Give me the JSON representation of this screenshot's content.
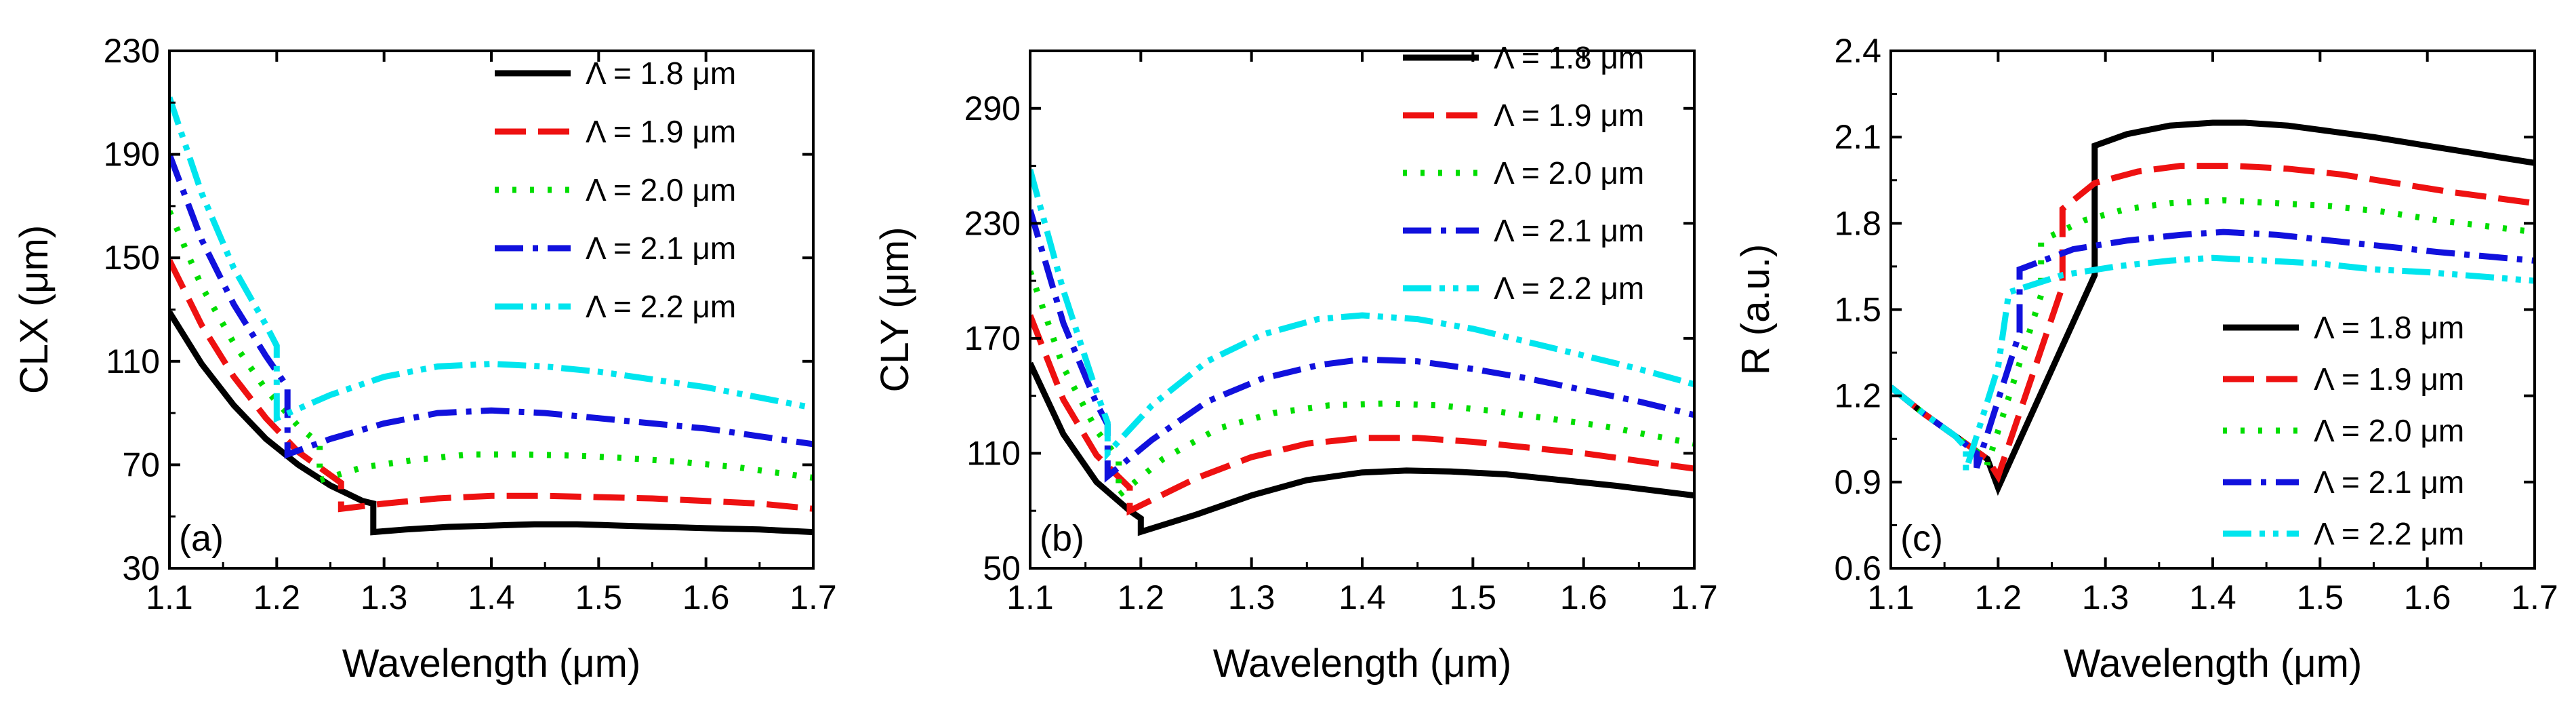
{
  "chart_data": [
    {
      "type": "line",
      "panel_label": "(a)",
      "xlabel": "Wavelength (μm)",
      "ylabel": "CLX (μm)",
      "xlim": [
        1.1,
        1.7
      ],
      "ylim": [
        30,
        230
      ],
      "xticks": [
        "1.1",
        "1.2",
        "1.3",
        "1.4",
        "1.5",
        "1.6",
        "1.7"
      ],
      "yticks": [
        "30",
        "70",
        "110",
        "150",
        "190",
        "230"
      ],
      "legend_position": "top-right",
      "series": [
        {
          "name": "Λ = 1.8 μm",
          "color": "#000000",
          "style": "solid",
          "x": [
            1.1,
            1.13,
            1.16,
            1.19,
            1.22,
            1.25,
            1.28,
            1.29,
            1.29,
            1.32,
            1.36,
            1.4,
            1.44,
            1.48,
            1.52,
            1.56,
            1.6,
            1.65,
            1.7
          ],
          "y": [
            129,
            109,
            93,
            80,
            70,
            62,
            56,
            55,
            44,
            45,
            46,
            46.5,
            47,
            47,
            46.5,
            46,
            45.5,
            45,
            44
          ]
        },
        {
          "name": "Λ = 1.9 μm",
          "color": "#ee1111",
          "style": "dash",
          "x": [
            1.1,
            1.13,
            1.16,
            1.19,
            1.22,
            1.25,
            1.26,
            1.26,
            1.3,
            1.35,
            1.4,
            1.45,
            1.5,
            1.55,
            1.6,
            1.65,
            1.7
          ],
          "y": [
            149,
            124,
            104,
            88,
            75,
            66,
            63,
            53,
            55,
            57,
            58,
            58,
            57.5,
            57,
            56,
            55,
            53
          ]
        },
        {
          "name": "Λ = 2.0 μm",
          "color": "#00dd00",
          "style": "dot",
          "x": [
            1.1,
            1.13,
            1.16,
            1.19,
            1.22,
            1.24,
            1.24,
            1.28,
            1.33,
            1.38,
            1.43,
            1.48,
            1.53,
            1.58,
            1.63,
            1.7
          ],
          "y": [
            168,
            139,
            117,
            99,
            85,
            78,
            64,
            69,
            72,
            74,
            74,
            73.5,
            72.5,
            71,
            69,
            65
          ]
        },
        {
          "name": "Λ = 2.1 μm",
          "color": "#1111dd",
          "style": "dashdot",
          "x": [
            1.1,
            1.13,
            1.16,
            1.19,
            1.21,
            1.21,
            1.25,
            1.3,
            1.35,
            1.4,
            1.45,
            1.5,
            1.55,
            1.6,
            1.65,
            1.7
          ],
          "y": [
            190,
            157,
            132,
            112,
            100,
            74,
            80,
            86,
            90,
            91,
            90,
            88,
            86,
            84,
            81,
            78
          ]
        },
        {
          "name": "Λ = 2.2 μm",
          "color": "#00e5ee",
          "style": "dashdotdot",
          "x": [
            1.1,
            1.13,
            1.16,
            1.19,
            1.2,
            1.2,
            1.25,
            1.3,
            1.35,
            1.4,
            1.45,
            1.5,
            1.55,
            1.6,
            1.65,
            1.7
          ],
          "y": [
            212,
            175,
            146,
            124,
            116,
            88,
            97,
            104,
            108,
            109,
            108,
            106,
            103,
            100,
            96,
            92
          ]
        }
      ]
    },
    {
      "type": "line",
      "panel_label": "(b)",
      "xlabel": "Wavelength (μm)",
      "ylabel": "CLY (μm)",
      "xlim": [
        1.1,
        1.7
      ],
      "ylim": [
        50,
        320
      ],
      "xticks": [
        "1.1",
        "1.2",
        "1.3",
        "1.4",
        "1.5",
        "1.6",
        "1.7"
      ],
      "yticks": [
        "50",
        "110",
        "170",
        "230",
        "290"
      ],
      "legend_position": "top-right",
      "series": [
        {
          "name": "Λ = 1.8 μm",
          "color": "#000000",
          "style": "solid",
          "x": [
            1.1,
            1.13,
            1.16,
            1.19,
            1.2,
            1.2,
            1.25,
            1.3,
            1.35,
            1.4,
            1.44,
            1.48,
            1.53,
            1.58,
            1.63,
            1.7
          ],
          "y": [
            157,
            120,
            95,
            80,
            76,
            69,
            78,
            88,
            96,
            100,
            101,
            100.5,
            99,
            96,
            93,
            88
          ]
        },
        {
          "name": "Λ = 1.9 μm",
          "color": "#ee1111",
          "style": "dash",
          "x": [
            1.1,
            1.13,
            1.16,
            1.19,
            1.19,
            1.25,
            1.3,
            1.35,
            1.4,
            1.45,
            1.5,
            1.55,
            1.6,
            1.65,
            1.7
          ],
          "y": [
            182,
            138,
            109,
            92,
            80,
            97,
            108,
            115,
            118,
            118,
            116,
            113,
            110,
            106,
            102
          ]
        },
        {
          "name": "Λ = 2.0 μm",
          "color": "#00dd00",
          "style": "dot",
          "x": [
            1.1,
            1.13,
            1.16,
            1.18,
            1.18,
            1.22,
            1.27,
            1.32,
            1.37,
            1.42,
            1.47,
            1.52,
            1.57,
            1.62,
            1.7
          ],
          "y": [
            205,
            155,
            122,
            107,
            88,
            107,
            123,
            131,
            135,
            136,
            135,
            132,
            128,
            124,
            115
          ]
        },
        {
          "name": "Λ = 2.1 μm",
          "color": "#1111dd",
          "style": "dashdot",
          "x": [
            1.1,
            1.13,
            1.16,
            1.17,
            1.17,
            1.21,
            1.26,
            1.31,
            1.36,
            1.4,
            1.45,
            1.5,
            1.55,
            1.6,
            1.65,
            1.7
          ],
          "y": [
            237,
            178,
            136,
            125,
            98,
            117,
            137,
            149,
            156,
            159,
            158,
            154,
            149,
            143,
            137,
            130
          ]
        },
        {
          "name": "Λ = 2.2 μm",
          "color": "#00e5ee",
          "style": "dashdotdot",
          "x": [
            1.1,
            1.13,
            1.16,
            1.17,
            1.17,
            1.21,
            1.26,
            1.31,
            1.36,
            1.4,
            1.45,
            1.5,
            1.55,
            1.6,
            1.65,
            1.7
          ],
          "y": [
            258,
            195,
            142,
            126,
            110,
            135,
            158,
            172,
            180,
            182,
            180,
            175,
            168,
            161,
            154,
            146
          ]
        }
      ]
    },
    {
      "type": "line",
      "panel_label": "(c)",
      "xlabel": "Wavelength (μm)",
      "ylabel": "R (a.u.)",
      "xlim": [
        1.1,
        1.7
      ],
      "ylim": [
        0.6,
        2.4
      ],
      "xticks": [
        "1.1",
        "1.2",
        "1.3",
        "1.4",
        "1.5",
        "1.6",
        "1.7"
      ],
      "yticks": [
        "0.6",
        "0.9",
        "1.2",
        "1.5",
        "1.8",
        "2.1",
        "2.4"
      ],
      "legend_position": "bottom-right",
      "series": [
        {
          "name": "Λ = 1.8 μm",
          "color": "#000000",
          "style": "solid",
          "x": [
            1.1,
            1.13,
            1.16,
            1.19,
            1.2,
            1.29,
            1.29,
            1.32,
            1.36,
            1.4,
            1.43,
            1.47,
            1.51,
            1.55,
            1.6,
            1.65,
            1.7
          ],
          "y": [
            1.23,
            1.14,
            1.06,
            0.98,
            0.88,
            1.62,
            2.07,
            2.11,
            2.14,
            2.15,
            2.15,
            2.14,
            2.12,
            2.1,
            2.07,
            2.04,
            2.01
          ]
        },
        {
          "name": "Λ = 1.9 μm",
          "color": "#ee1111",
          "style": "dash",
          "x": [
            1.1,
            1.13,
            1.16,
            1.19,
            1.2,
            1.26,
            1.26,
            1.29,
            1.33,
            1.37,
            1.42,
            1.47,
            1.52,
            1.57,
            1.62,
            1.7
          ],
          "y": [
            1.23,
            1.14,
            1.06,
            0.98,
            0.92,
            1.58,
            1.85,
            1.94,
            1.98,
            2.0,
            2.0,
            1.99,
            1.97,
            1.94,
            1.91,
            1.87
          ]
        },
        {
          "name": "Λ = 2.0 μm",
          "color": "#00dd00",
          "style": "dot",
          "x": [
            1.1,
            1.13,
            1.16,
            1.19,
            1.19,
            1.24,
            1.24,
            1.28,
            1.32,
            1.36,
            1.41,
            1.46,
            1.51,
            1.56,
            1.61,
            1.7
          ],
          "y": [
            1.23,
            1.14,
            1.06,
            0.98,
            0.96,
            1.55,
            1.74,
            1.81,
            1.85,
            1.87,
            1.88,
            1.87,
            1.86,
            1.84,
            1.81,
            1.77
          ]
        },
        {
          "name": "Λ = 2.1 μm",
          "color": "#1111dd",
          "style": "dashdot",
          "x": [
            1.1,
            1.13,
            1.16,
            1.18,
            1.18,
            1.22,
            1.22,
            1.27,
            1.32,
            1.37,
            1.41,
            1.46,
            1.51,
            1.56,
            1.61,
            1.7
          ],
          "y": [
            1.23,
            1.14,
            1.06,
            1.0,
            0.95,
            1.42,
            1.64,
            1.71,
            1.74,
            1.76,
            1.77,
            1.76,
            1.74,
            1.72,
            1.7,
            1.67
          ]
        },
        {
          "name": "Λ = 2.2 μm",
          "color": "#00e5ee",
          "style": "dashdotdot",
          "x": [
            1.1,
            1.13,
            1.16,
            1.17,
            1.17,
            1.2,
            1.21,
            1.26,
            1.31,
            1.36,
            1.4,
            1.45,
            1.5,
            1.55,
            1.6,
            1.7
          ],
          "y": [
            1.23,
            1.14,
            1.06,
            1.02,
            0.94,
            1.3,
            1.56,
            1.62,
            1.65,
            1.67,
            1.68,
            1.67,
            1.66,
            1.64,
            1.63,
            1.6
          ]
        }
      ]
    }
  ]
}
